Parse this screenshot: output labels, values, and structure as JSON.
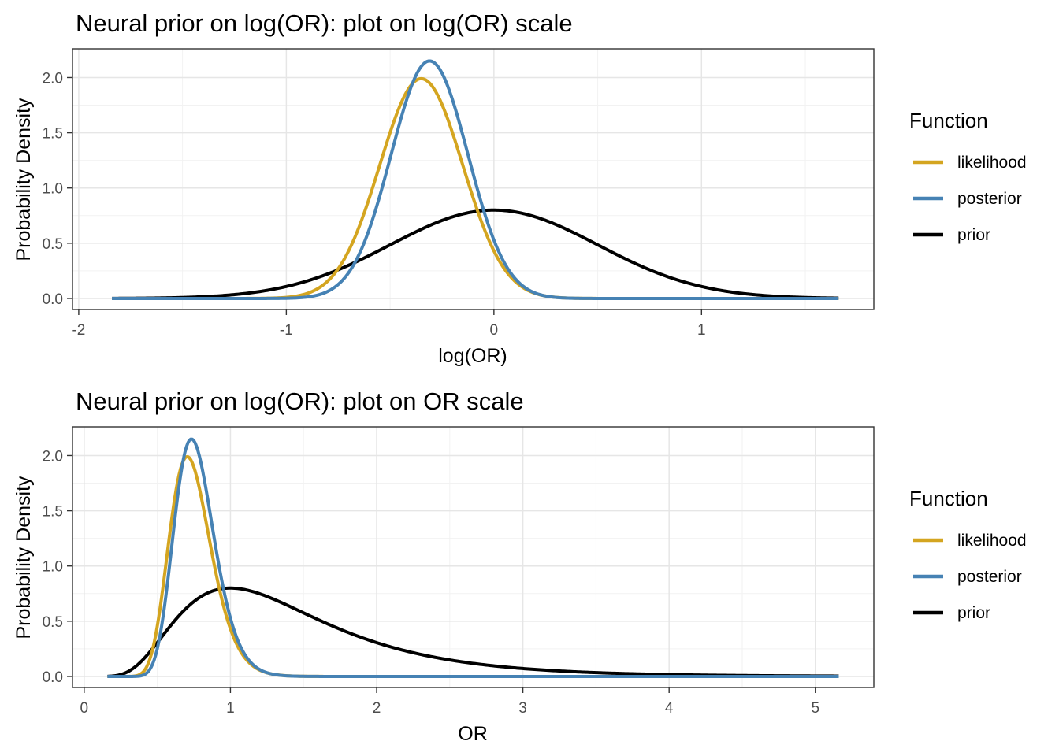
{
  "chart_data": [
    {
      "type": "line",
      "title": "Neural prior on log(OR): plot on log(OR) scale",
      "xlabel": "log(OR)",
      "ylabel": "Probability Density",
      "xlim": [
        -2.03,
        1.83
      ],
      "ylim": [
        -0.1,
        2.26
      ],
      "x_ticks": [
        -2,
        -1,
        0,
        1
      ],
      "x_tick_labels": [
        "-2",
        "-1",
        "0",
        "1"
      ],
      "y_ticks": [
        0.0,
        0.5,
        1.0,
        1.5,
        2.0
      ],
      "y_tick_labels": [
        "0.0",
        "0.5",
        "1.0",
        "1.5",
        "2.0"
      ],
      "grid": true,
      "legend": {
        "title": "Function",
        "position": "right"
      },
      "x_range": [
        -1.84,
        1.66
      ],
      "series": [
        {
          "name": "likelihood",
          "color": "#D4A520",
          "dist": "normal",
          "mean": -0.35,
          "sd": 0.2,
          "peak": 1.99
        },
        {
          "name": "posterior",
          "color": "#4682B4",
          "dist": "normal",
          "mean": -0.31,
          "sd": 0.185,
          "peak": 2.15
        },
        {
          "name": "prior",
          "color": "#000000",
          "dist": "normal",
          "mean": 0.0,
          "sd": 0.5,
          "peak": 0.8
        }
      ]
    },
    {
      "type": "line",
      "title": "Neural prior on log(OR): plot on OR scale",
      "xlabel": "OR",
      "ylabel": "Probability Density",
      "xlim": [
        -0.08,
        5.4
      ],
      "ylim": [
        -0.1,
        2.26
      ],
      "x_ticks": [
        0,
        1,
        2,
        3,
        4,
        5
      ],
      "x_tick_labels": [
        "0",
        "1",
        "2",
        "3",
        "4",
        "5"
      ],
      "y_ticks": [
        0.0,
        0.5,
        1.0,
        1.5,
        2.0
      ],
      "y_tick_labels": [
        "0.0",
        "0.5",
        "1.0",
        "1.5",
        "2.0"
      ],
      "grid": true,
      "legend": {
        "title": "Function",
        "position": "right"
      },
      "x_range": [
        0.159,
        5.16
      ],
      "series": [
        {
          "name": "likelihood",
          "color": "#D4A520",
          "dist": "lognormal-as-normal",
          "mean": -0.35,
          "sd": 0.2,
          "peak": 1.99
        },
        {
          "name": "posterior",
          "color": "#4682B4",
          "dist": "lognormal-as-normal",
          "mean": -0.31,
          "sd": 0.185,
          "peak": 2.15
        },
        {
          "name": "prior",
          "color": "#000000",
          "dist": "lognormal-as-normal",
          "mean": 0.0,
          "sd": 0.5,
          "peak": 0.8
        }
      ]
    }
  ]
}
